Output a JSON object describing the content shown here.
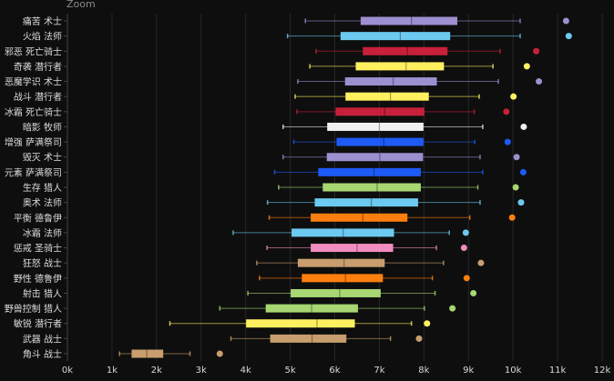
{
  "title": "Zoom",
  "chart_data": {
    "type": "boxplot",
    "orientation": "horizontal",
    "title": "Zoom",
    "xlim": [
      0,
      12000
    ],
    "x_ticks": [
      "0k",
      "1k",
      "2k",
      "3k",
      "4k",
      "5k",
      "6k",
      "7k",
      "8k",
      "9k",
      "10k",
      "11k",
      "12k"
    ],
    "grid": true,
    "series": [
      {
        "label": "痛苦 术士",
        "color": "#9d8fd0",
        "min": 5340,
        "q1": 6580,
        "median": 7720,
        "q3": 8750,
        "max": 10160,
        "outlier": 11190
      },
      {
        "label": "火焰 法师",
        "color": "#6cc9f0",
        "min": 4940,
        "q1": 6130,
        "median": 7470,
        "q3": 8590,
        "max": 10160,
        "outlier": 11250
      },
      {
        "label": "邪恶 死亡骑士",
        "color": "#c8203a",
        "min": 5580,
        "q1": 6630,
        "median": 7630,
        "q3": 8530,
        "max": 9710,
        "outlier": 10520
      },
      {
        "label": "奇袭 潜行者",
        "color": "#fff060",
        "min": 5440,
        "q1": 6470,
        "median": 7600,
        "q3": 8450,
        "max": 9550,
        "outlier": 10310
      },
      {
        "label": "恶魔学识 术士",
        "color": "#9d8fd0",
        "min": 5170,
        "q1": 6230,
        "median": 7310,
        "q3": 8290,
        "max": 9670,
        "outlier": 10580
      },
      {
        "label": "战斗 潜行者",
        "color": "#fff060",
        "min": 5110,
        "q1": 6240,
        "median": 7250,
        "q3": 8110,
        "max": 9240,
        "outlier": 10010
      },
      {
        "label": "冰霜 死亡骑士",
        "color": "#c8203a",
        "min": 5150,
        "q1": 6020,
        "median": 7120,
        "q3": 8010,
        "max": 9130,
        "outlier": 9850
      },
      {
        "label": "暗影 牧师",
        "color": "#f0f0f0",
        "min": 4840,
        "q1": 5830,
        "median": 7000,
        "q3": 7990,
        "max": 9320,
        "outlier": 10240
      },
      {
        "label": "增强 萨满祭司",
        "color": "#1e5af5",
        "min": 5080,
        "q1": 6040,
        "median": 7100,
        "q3": 7990,
        "max": 9140,
        "outlier": 9880
      },
      {
        "label": "毁灭 术士",
        "color": "#9d8fd0",
        "min": 4840,
        "q1": 5820,
        "median": 7010,
        "q3": 7980,
        "max": 9260,
        "outlier": 10080
      },
      {
        "label": "元素 萨满祭司",
        "color": "#1e5af5",
        "min": 4650,
        "q1": 5630,
        "median": 6880,
        "q3": 7930,
        "max": 9320,
        "outlier": 10230
      },
      {
        "label": "生存 猎人",
        "color": "#a8d672",
        "min": 4740,
        "q1": 5730,
        "median": 6950,
        "q3": 7930,
        "max": 9210,
        "outlier": 10060
      },
      {
        "label": "奥术 法师",
        "color": "#6cc9f0",
        "min": 4490,
        "q1": 5550,
        "median": 6820,
        "q3": 7870,
        "max": 9260,
        "outlier": 10180
      },
      {
        "label": "平衡 德鲁伊",
        "color": "#ff7f0e",
        "min": 4530,
        "q1": 5460,
        "median": 6630,
        "q3": 7630,
        "max": 9030,
        "outlier": 9980
      },
      {
        "label": "冰霜 法师",
        "color": "#6cc9f0",
        "min": 3720,
        "q1": 5030,
        "median": 6190,
        "q3": 7330,
        "max": 8570,
        "outlier": 8940
      },
      {
        "label": "惩戒 圣骑士",
        "color": "#f08cc0",
        "min": 4480,
        "q1": 5460,
        "median": 6500,
        "q3": 7310,
        "max": 8280,
        "outlier": 8900
      },
      {
        "label": "狂怒 战士",
        "color": "#c89e6e",
        "min": 4250,
        "q1": 5170,
        "median": 6210,
        "q3": 7120,
        "max": 8440,
        "outlier": 9280
      },
      {
        "label": "野性 德鲁伊",
        "color": "#ff7f0e",
        "min": 4310,
        "q1": 5260,
        "median": 6240,
        "q3": 7080,
        "max": 8190,
        "outlier": 8960
      },
      {
        "label": "射击 猎人",
        "color": "#a8d672",
        "min": 4050,
        "q1": 5010,
        "median": 6110,
        "q3": 7030,
        "max": 8250,
        "outlier": 9110
      },
      {
        "label": "野兽控制 猎人",
        "color": "#a8d672",
        "min": 3420,
        "q1": 4450,
        "median": 5480,
        "q3": 6520,
        "max": 8010,
        "outlier": 8640
      },
      {
        "label": "敏锐 潜行者",
        "color": "#fff060",
        "min": 2300,
        "q1": 4010,
        "median": 5600,
        "q3": 6450,
        "max": 7720,
        "outlier": 8070
      },
      {
        "label": "武器 战士",
        "color": "#c89e6e",
        "min": 3670,
        "q1": 4550,
        "median": 5490,
        "q3": 6260,
        "max": 7250,
        "outlier": 7890
      },
      {
        "label": "角斗 战士",
        "color": "#c89e6e",
        "min": 1170,
        "q1": 1440,
        "median": 1780,
        "q3": 2150,
        "max": 2750,
        "outlier": 3420
      }
    ]
  }
}
